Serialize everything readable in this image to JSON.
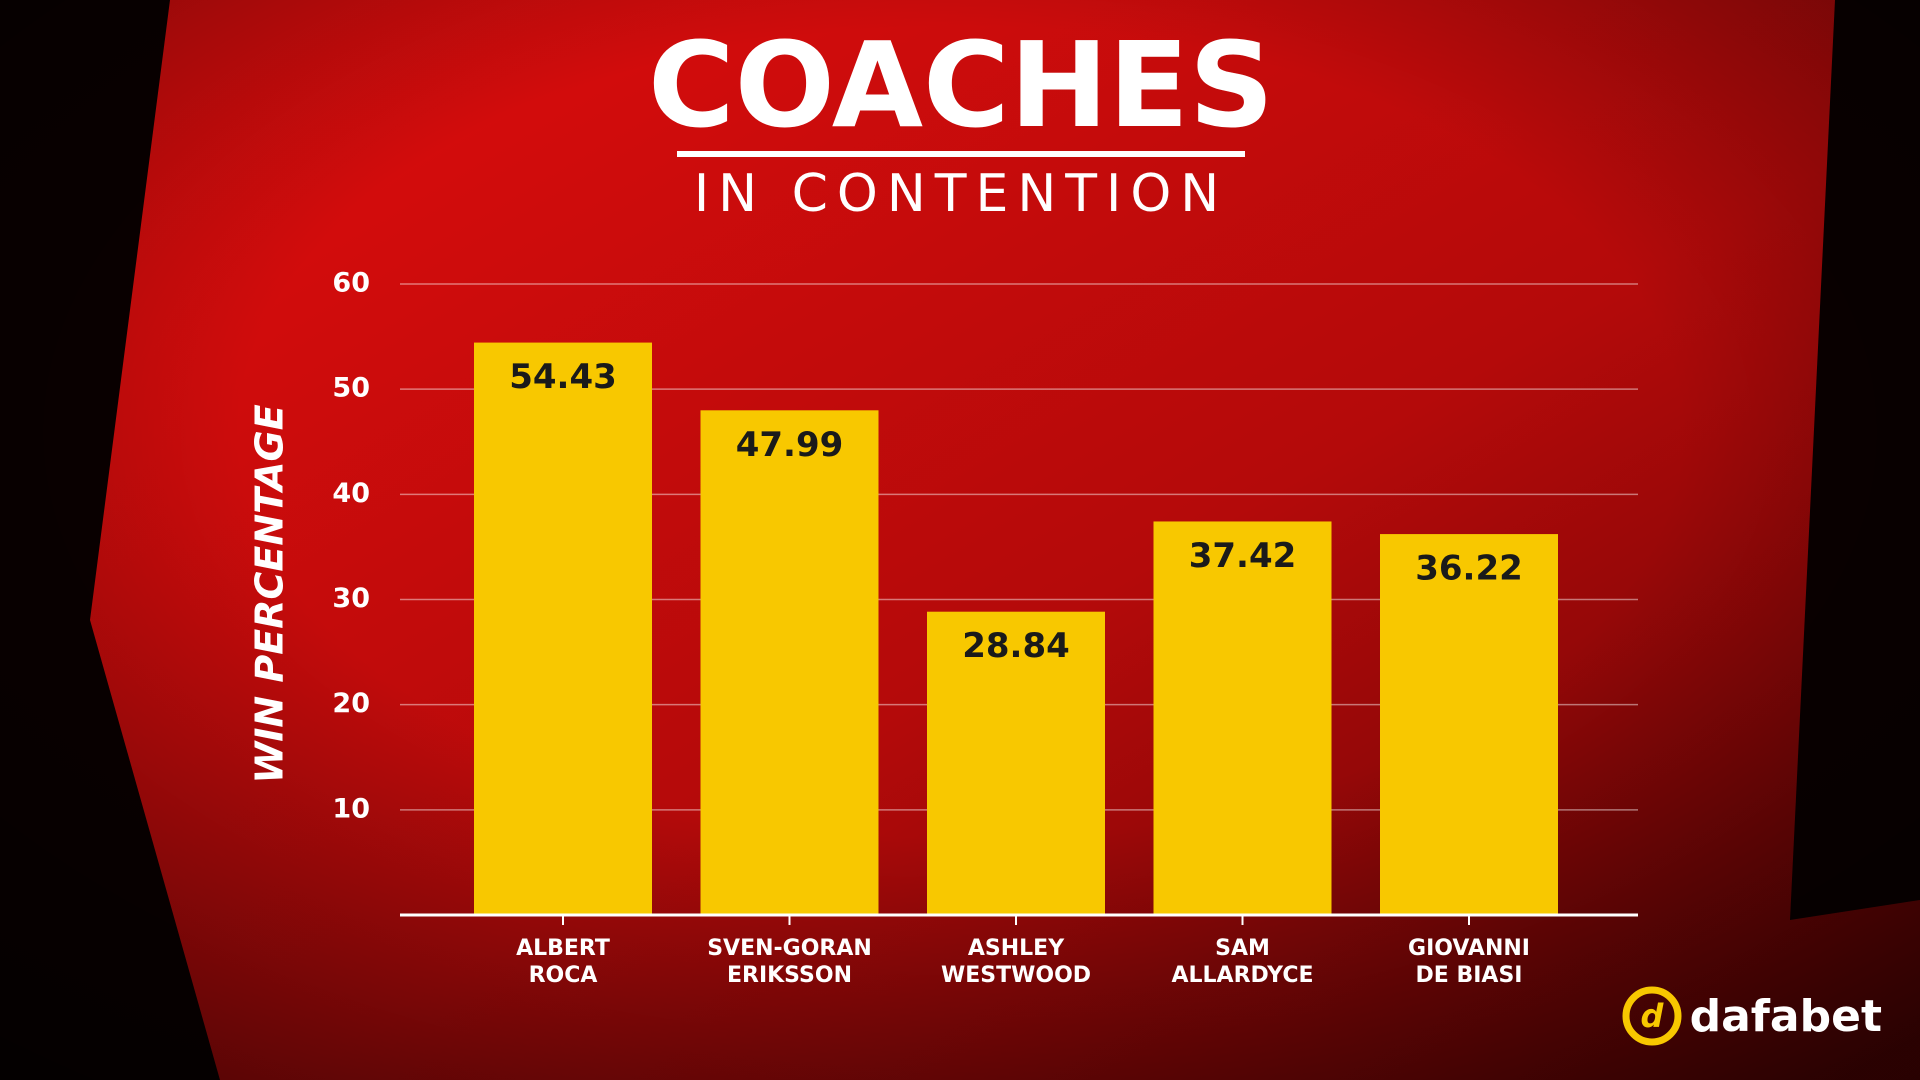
{
  "chart_data": {
    "type": "bar",
    "title": "COACHES",
    "subtitle": "IN CONTENTION",
    "y_label": "WIN PERCENTAGE",
    "categories": [
      "ALBERT\nROCA",
      "SVEN-GORAN\nERIKSSON",
      "ASHLEY\nWESTWOOD",
      "SAM\nALLARDYCE",
      "GIOVANNI\nDE BIASI"
    ],
    "values": [
      54.43,
      47.99,
      28.84,
      37.42,
      36.22
    ],
    "color": "#f8c800",
    "ylim": [
      0,
      60
    ],
    "yticks": [
      10,
      20,
      30,
      40,
      50,
      60
    ],
    "grid": true
  },
  "logo": "dafabet"
}
